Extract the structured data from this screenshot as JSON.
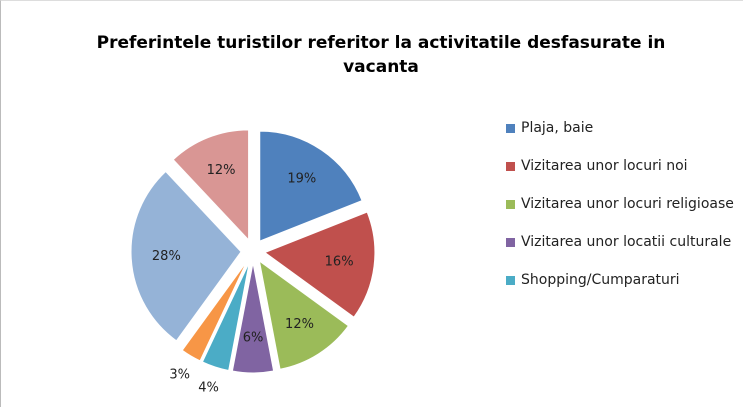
{
  "chart_data": {
    "type": "pie",
    "title": "Preferintele turistilor referitor la activitatile desfasurate in vacanta",
    "categories": [
      "Plaja, baie",
      "Vizitarea unor locuri noi",
      "Vizitarea unor locuri religioase",
      "Vizitarea unor locatii culturale",
      "Shopping/Cumparaturi",
      null,
      null,
      null
    ],
    "values": [
      19,
      16,
      12,
      6,
      4,
      3,
      28,
      12
    ],
    "value_labels": [
      "19%",
      "16%",
      "12%",
      "6%",
      "4%",
      "3%",
      "28%",
      "12%"
    ],
    "colors": [
      "#4f81bd",
      "#c0504d",
      "#9bbb59",
      "#8064a2",
      "#4bacc6",
      "#f79646",
      "#95b3d7",
      "#d99694"
    ],
    "legend": "right"
  }
}
